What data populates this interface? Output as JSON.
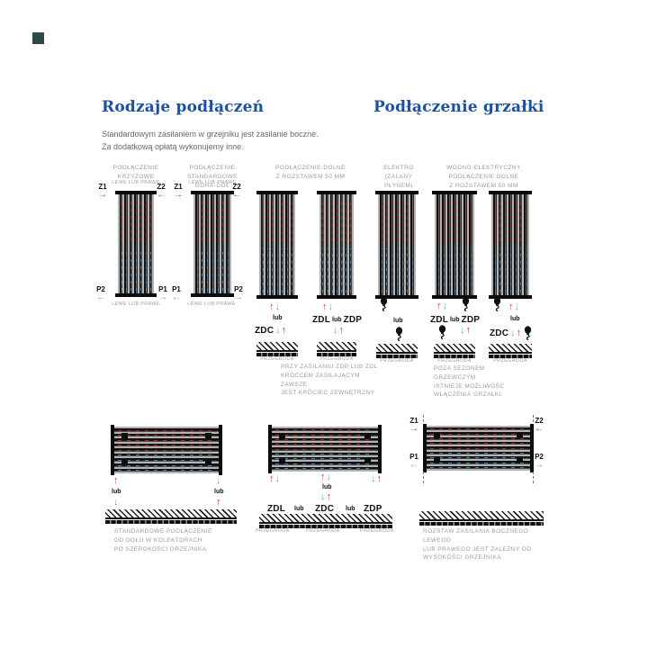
{
  "page": {
    "corner_mark_color": "#2e4a48"
  },
  "headings": {
    "left": "Rodzaje podłączeń",
    "right": "Podłączenie grzałki"
  },
  "intro": {
    "line1": "Standardowym zasilaniem w grzejniku jest zasilanie boczne.",
    "line2": "Za dodatkową opłatą wykonujemy inne."
  },
  "columns": {
    "krzyzowe": "PODŁĄCZENIE\nKRZYŻOWE",
    "standardowe": "PODŁĄCZENIE\nSTANDARDOWE\nGÓRA-DÓŁ",
    "dolne": "PODŁĄCZENIE DOLNE\nZ ROZSTAWEM 50 MM",
    "elektro": "ELEKTRO\n(ZALANY\nPŁYNEM)",
    "wodno": "WODNO-ELEKTRYCZNY\nPODŁĄCZENIE DOLNE\nZ ROZSTAWEM 50 MM"
  },
  "labels": {
    "z1": "Z1",
    "z2": "Z2",
    "p1": "P1",
    "p2": "P2",
    "zdc": "ZDC",
    "zdl": "ZDL",
    "zdp": "ZDP",
    "lub": "lub",
    "lewe_lub_prawe": "LEWE LUB PRAWE",
    "przegroda": "PRZEGRODA"
  },
  "icons": {
    "up": "↑",
    "down": "↓",
    "left": "←",
    "right": "→"
  },
  "notes": {
    "zdp_zdl": "PRZY ZASILANIU ZDP LUB ZDL\nKRÓĆCEM ZASILAJĄCYM ZAWSZE\nJEST KRÓCIEC ZEWNĘTRZNY",
    "poza_sezonem": "POZA SEZONEM\nGRZEWCZYM\nISTNIEJE MOŻLIWOŚĆ\nWŁĄCZENIA GRZAŁKI"
  },
  "bottom": {
    "caption_left": "STANDARDOWE PODŁĄCZENIE\nOD DOŁU W KOLEKTORACH\nPO SZEROKOŚCI GRZEJNIKA",
    "caption_right": "ROZSTAW ZASILANIA BOCZNEGO LEWEGO\nLUB PRAWEGO JEST ZALEŻNY OD\nWYSOKOŚCI GRZEJNIKA"
  },
  "colors": {
    "accent_blue": "#1c51a2",
    "arrow_red": "#e03227",
    "arrow_blue": "#4fb0e0"
  }
}
